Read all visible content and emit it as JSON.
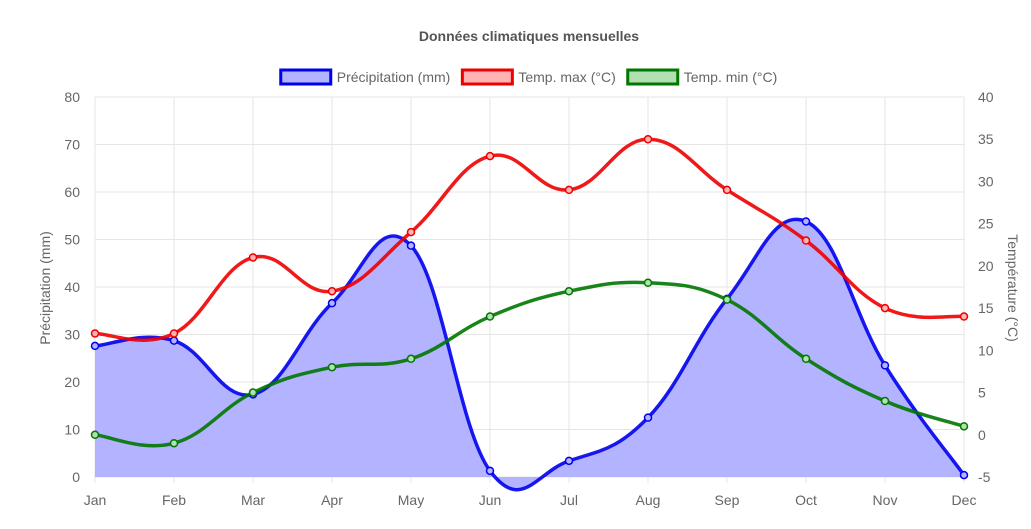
{
  "chart_data": {
    "type": "line",
    "title": "Données climatiques mensuelles",
    "categories": [
      "Jan",
      "Feb",
      "Mar",
      "Apr",
      "May",
      "Jun",
      "Jul",
      "Aug",
      "Sep",
      "Oct",
      "Nov",
      "Dec"
    ],
    "y_left": {
      "label": "Précipitation (mm)",
      "ylim": [
        0,
        80
      ],
      "ticks": [
        "0",
        "10",
        "20",
        "30",
        "40",
        "50",
        "60",
        "70",
        "80"
      ]
    },
    "y_right": {
      "label": "Température (°C)",
      "ylim": [
        -5,
        40
      ],
      "ticks": [
        "-5",
        "0",
        "5",
        "10",
        "15",
        "20",
        "25",
        "30",
        "35",
        "40"
      ]
    },
    "grid": true,
    "legend_position": "top",
    "series": [
      {
        "name": "Précipitation (mm)",
        "axis": "left",
        "fill": true,
        "color": "#0000ee",
        "fill_color": "#b3b3ff",
        "values": [
          27.6,
          28.7,
          17.4,
          36.6,
          48.7,
          1.3,
          3.4,
          12.5,
          37.5,
          53.8,
          23.5,
          0.4
        ]
      },
      {
        "name": "Temp. max (°C)",
        "axis": "right",
        "fill": false,
        "color": "#ee0000",
        "fill_color": "#ffb3b3",
        "values": [
          12,
          12,
          21,
          17,
          24,
          33,
          29,
          35,
          29,
          23,
          15,
          14
        ]
      },
      {
        "name": "Temp. min (°C)",
        "axis": "right",
        "fill": false,
        "color": "#007700",
        "fill_color": "#b3e0b3",
        "values": [
          0,
          -1,
          5,
          8,
          9,
          14,
          17,
          18,
          16,
          9,
          4,
          1
        ]
      }
    ]
  }
}
